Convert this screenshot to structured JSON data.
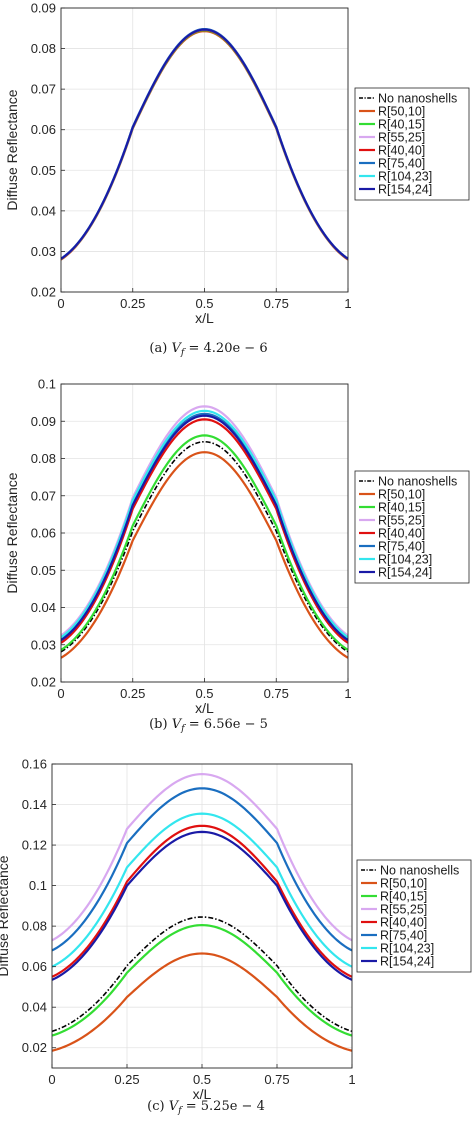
{
  "colors": {
    "No nanoshells": "#000000",
    "R[50,10]": "#d95319",
    "R[40,15]": "#33dd33",
    "R[55,25]": "#d8a8f0",
    "R[40,40]": "#e01010",
    "R[75,40]": "#1a6ec0",
    "R[104,23]": "#33e6ee",
    "R[154,24]": "#1a1aa6"
  },
  "chart_data": [
    {
      "type": "line",
      "caption": "(a) V_f = 4.20e − 6",
      "xlabel": "x/L",
      "ylabel": "Diffuse Reflectance",
      "xlim": [
        0,
        1
      ],
      "ylim": [
        0.02,
        0.09
      ],
      "xticks": [
        0,
        0.25,
        0.5,
        0.75,
        1
      ],
      "xtick_labels": [
        "0",
        "0.25",
        "0.5",
        "0.75",
        "1"
      ],
      "yticks": [
        0.02,
        0.03,
        0.04,
        0.05,
        0.06,
        0.07,
        0.08,
        0.09
      ],
      "ytick_labels": [
        "0.02",
        "0.03",
        "0.04",
        "0.05",
        "0.06",
        "0.07",
        "0.08",
        "0.09"
      ],
      "grid": true,
      "legend": "outside-right",
      "series": [
        {
          "name": "No nanoshells",
          "style": "dashdot",
          "edge": 0.0281,
          "kink": 0.0605,
          "peak": 0.0845
        },
        {
          "name": "R[50,10]",
          "edge": 0.028,
          "kink": 0.0603,
          "peak": 0.0843
        },
        {
          "name": "R[40,15]",
          "edge": 0.0281,
          "kink": 0.0605,
          "peak": 0.0845
        },
        {
          "name": "R[55,25]",
          "edge": 0.0282,
          "kink": 0.0607,
          "peak": 0.0848
        },
        {
          "name": "R[40,40]",
          "edge": 0.0281,
          "kink": 0.0606,
          "peak": 0.0846
        },
        {
          "name": "R[75,40]",
          "edge": 0.0282,
          "kink": 0.0607,
          "peak": 0.0848
        },
        {
          "name": "R[104,23]",
          "edge": 0.0282,
          "kink": 0.0606,
          "peak": 0.0847
        },
        {
          "name": "R[154,24]",
          "edge": 0.0282,
          "kink": 0.0606,
          "peak": 0.0847
        }
      ]
    },
    {
      "type": "line",
      "caption": "(b) V_f = 6.56e − 5",
      "xlabel": "x/L",
      "ylabel": "Diffuse Reflectance",
      "xlim": [
        0,
        1
      ],
      "ylim": [
        0.02,
        0.1
      ],
      "xticks": [
        0,
        0.25,
        0.5,
        0.75,
        1
      ],
      "xtick_labels": [
        "0",
        "0.25",
        "0.5",
        "0.75",
        "1"
      ],
      "yticks": [
        0.02,
        0.03,
        0.04,
        0.05,
        0.06,
        0.07,
        0.08,
        0.09,
        0.1
      ],
      "ytick_labels": [
        "0.02",
        "0.03",
        "0.04",
        "0.05",
        "0.06",
        "0.07",
        "0.08",
        "0.09",
        "0.1"
      ],
      "grid": true,
      "legend": "outside-right",
      "series": [
        {
          "name": "No nanoshells",
          "style": "dashdot",
          "edge": 0.0281,
          "kink": 0.0605,
          "peak": 0.0845
        },
        {
          "name": "R[50,10]",
          "edge": 0.0265,
          "kink": 0.058,
          "peak": 0.0817
        },
        {
          "name": "R[40,15]",
          "edge": 0.0286,
          "kink": 0.062,
          "peak": 0.0862
        },
        {
          "name": "R[55,25]",
          "edge": 0.0325,
          "kink": 0.0695,
          "peak": 0.094
        },
        {
          "name": "R[40,40]",
          "edge": 0.0305,
          "kink": 0.0665,
          "peak": 0.0905
        },
        {
          "name": "R[75,40]",
          "edge": 0.0316,
          "kink": 0.068,
          "peak": 0.092
        },
        {
          "name": "R[104,23]",
          "edge": 0.032,
          "kink": 0.0688,
          "peak": 0.0928
        },
        {
          "name": "R[154,24]",
          "edge": 0.0312,
          "kink": 0.0675,
          "peak": 0.0915
        }
      ]
    },
    {
      "type": "line",
      "caption": "(c) V_f = 5.25e − 4",
      "xlabel": "x/L",
      "ylabel": "Diffuse Reflectance",
      "xlim": [
        0,
        1
      ],
      "ylim": [
        0.01,
        0.16
      ],
      "xticks": [
        0,
        0.25,
        0.5,
        0.75,
        1
      ],
      "xtick_labels": [
        "0",
        "0.25",
        "0.5",
        "0.75",
        "1"
      ],
      "yticks": [
        0.02,
        0.04,
        0.06,
        0.08,
        0.1,
        0.12,
        0.14,
        0.16
      ],
      "ytick_labels": [
        "0.02",
        "0.04",
        "0.06",
        "0.08",
        "0.1",
        "0.12",
        "0.14",
        "0.16"
      ],
      "grid": true,
      "legend": "outside-right",
      "series": [
        {
          "name": "No nanoshells",
          "style": "dashdot",
          "edge": 0.0281,
          "kink": 0.0605,
          "peak": 0.0845
        },
        {
          "name": "R[50,10]",
          "edge": 0.0185,
          "kink": 0.045,
          "peak": 0.0665
        },
        {
          "name": "R[40,15]",
          "edge": 0.026,
          "kink": 0.057,
          "peak": 0.0805
        },
        {
          "name": "R[55,25]",
          "edge": 0.073,
          "kink": 0.128,
          "peak": 0.155
        },
        {
          "name": "R[40,40]",
          "edge": 0.055,
          "kink": 0.102,
          "peak": 0.1295
        },
        {
          "name": "R[75,40]",
          "edge": 0.068,
          "kink": 0.121,
          "peak": 0.148
        },
        {
          "name": "R[104,23]",
          "edge": 0.06,
          "kink": 0.109,
          "peak": 0.1355
        },
        {
          "name": "R[154,24]",
          "edge": 0.0535,
          "kink": 0.1,
          "peak": 0.1265
        }
      ]
    }
  ]
}
